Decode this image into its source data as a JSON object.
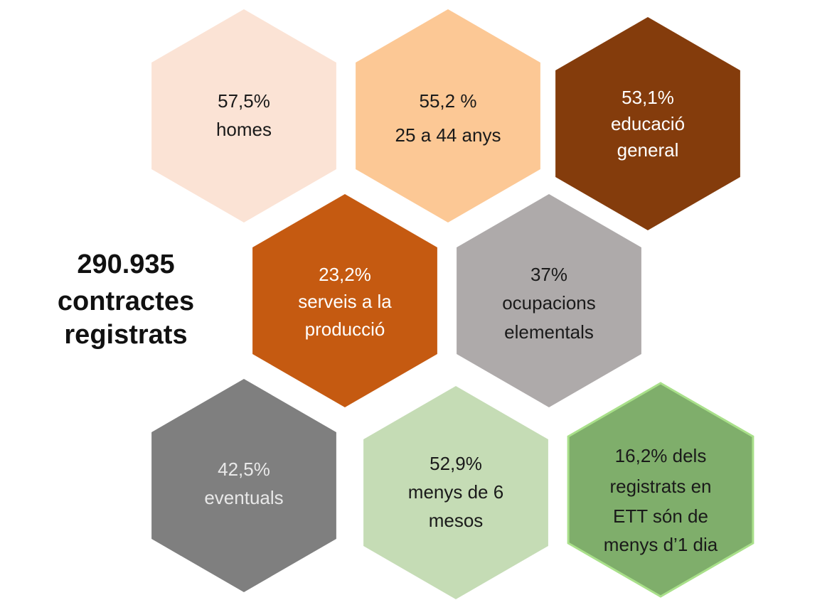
{
  "title": {
    "lines": [
      "290.935",
      "contractes",
      "registrats"
    ]
  },
  "hexagons": [
    {
      "id": "homes",
      "lines": [
        "57,5%",
        "homes"
      ],
      "fill": "#fbe3d5",
      "text_color": "#1a1a1a"
    },
    {
      "id": "age",
      "lines": [
        "55,2 %",
        "25 a 44 anys"
      ],
      "fill": "#fcc895",
      "text_color": "#1a1a1a"
    },
    {
      "id": "education",
      "lines": [
        "53,1%",
        "educació",
        "general"
      ],
      "fill": "#843c0c",
      "text_color": "#ffffff"
    },
    {
      "id": "services",
      "lines": [
        "23,2%",
        "serveis a la",
        "producció"
      ],
      "fill": "#c55a11",
      "text_color": "#ffffff"
    },
    {
      "id": "occupations",
      "lines": [
        "37%",
        "ocupacions",
        "elementals"
      ],
      "fill": "#aeaaaa",
      "text_color": "#1a1a1a"
    },
    {
      "id": "eventuals",
      "lines": [
        "42,5%",
        "eventuals"
      ],
      "fill": "#7f7f7f",
      "text_color": "#e8e8e8"
    },
    {
      "id": "duration",
      "lines": [
        "52,9%",
        "menys de 6",
        "mesos"
      ],
      "fill": "#c5dcb5",
      "text_color": "#1a1a1a"
    },
    {
      "id": "ett",
      "lines": [
        "16,2% dels",
        "registrats en",
        "ETT són de",
        "menys d’1 dia"
      ],
      "fill": "#7fae6b",
      "text_color": "#1a1a1a",
      "stroke": "#a9e08a"
    }
  ]
}
